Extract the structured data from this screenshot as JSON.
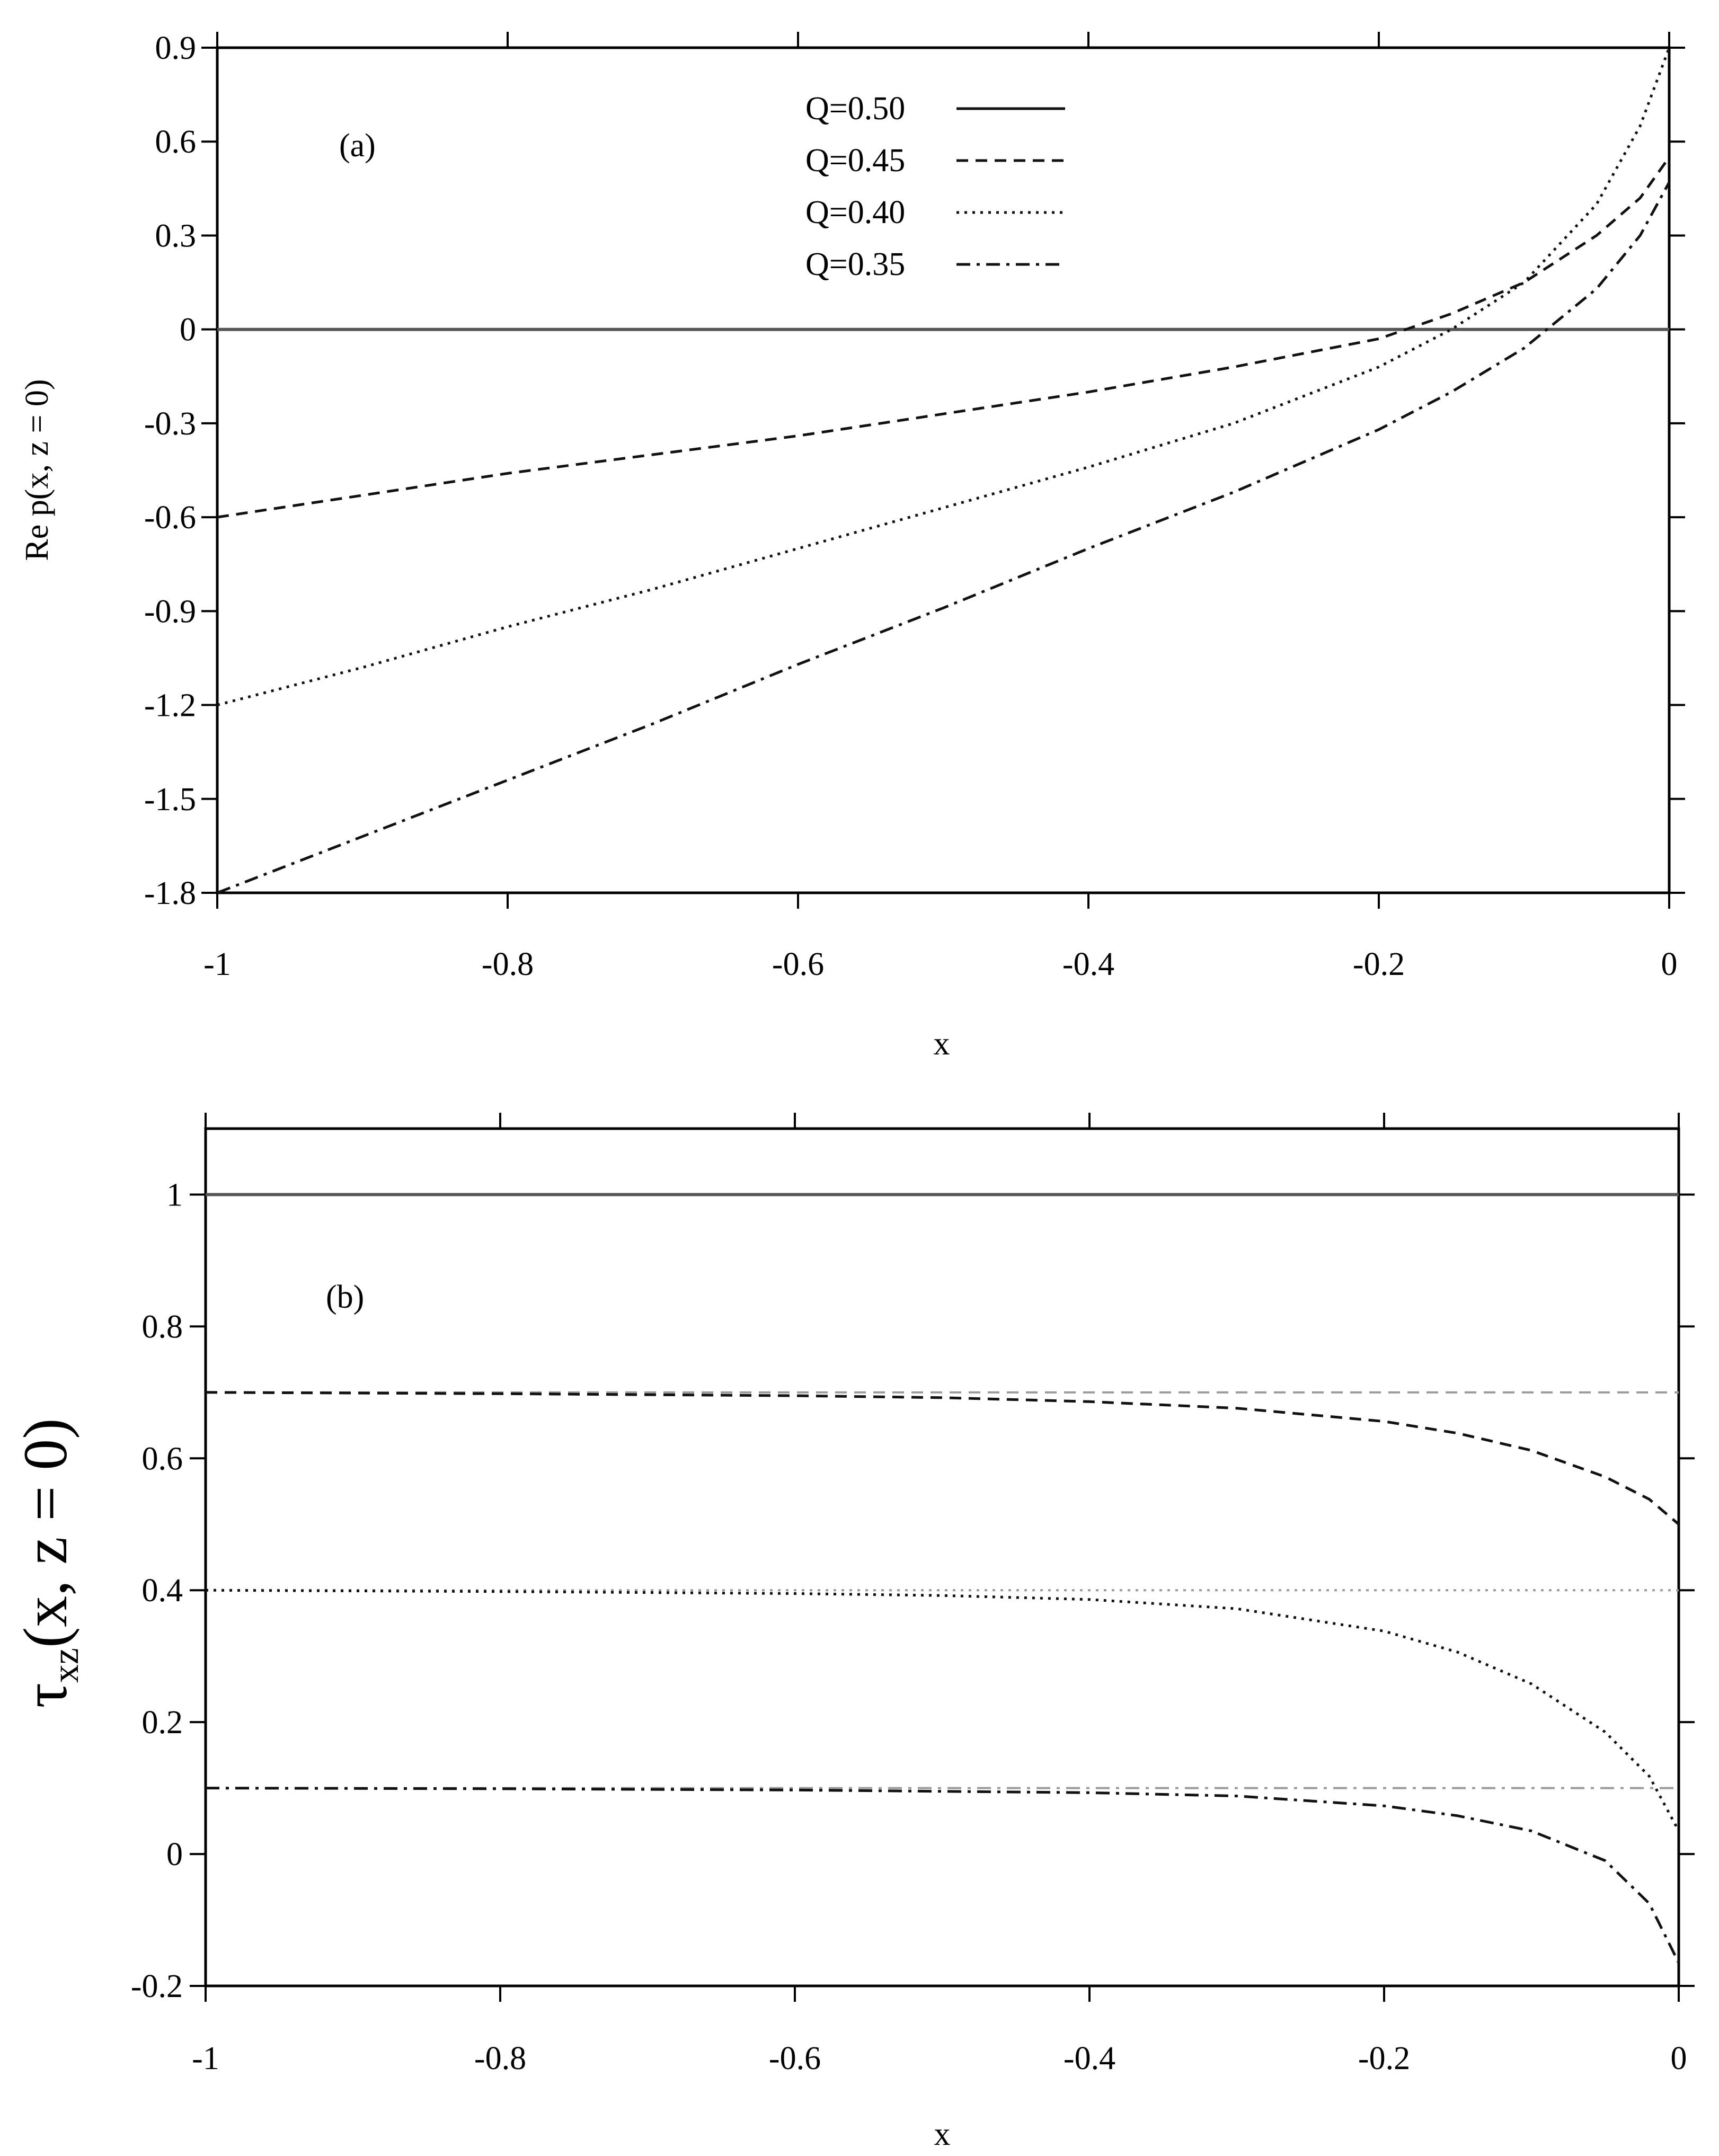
{
  "chart_data": [
    {
      "type": "line",
      "panel_label": "(a)",
      "xlabel": "x",
      "ylabel": "Re p(x, z = 0)",
      "xlim": [
        -1,
        0
      ],
      "ylim": [
        -1.8,
        0.9
      ],
      "x_ticks": [
        -1,
        -0.8,
        -0.6,
        -0.4,
        -0.2,
        0
      ],
      "x_tick_labels": [
        "-1",
        "-0.8",
        "-0.6",
        "-0.4",
        "-0.2",
        "0"
      ],
      "y_ticks": [
        -1.8,
        -1.5,
        -1.2,
        -0.9,
        -0.6,
        -0.3,
        0,
        0.3,
        0.6,
        0.9
      ],
      "y_tick_labels": [
        "-1.8",
        "-1.5",
        "-1.2",
        "-0.9",
        "-0.6",
        "-0.3",
        "0",
        "0.3",
        "0.6",
        "0.9"
      ],
      "grid": false,
      "legend_position": "top-center",
      "x": [
        -1,
        -0.9,
        -0.8,
        -0.7,
        -0.6,
        -0.5,
        -0.4,
        -0.3,
        -0.2,
        -0.15,
        -0.1,
        -0.05,
        -0.02,
        0
      ],
      "series": [
        {
          "name": "Q=0.50",
          "style": "solid",
          "values": [
            0,
            0,
            0,
            0,
            0,
            0,
            0,
            0,
            0,
            0,
            0,
            0,
            0,
            0
          ]
        },
        {
          "name": "Q=0.45",
          "style": "dashed",
          "values": [
            -0.6,
            -0.53,
            -0.46,
            -0.4,
            -0.34,
            -0.27,
            -0.2,
            -0.12,
            -0.03,
            0.05,
            0.15,
            0.3,
            0.42,
            0.55
          ]
        },
        {
          "name": "Q=0.40",
          "style": "dotted",
          "values": [
            -1.2,
            -1.08,
            -0.95,
            -0.83,
            -0.7,
            -0.57,
            -0.44,
            -0.3,
            -0.12,
            0.0,
            0.15,
            0.4,
            0.65,
            0.9
          ]
        },
        {
          "name": "Q=0.35",
          "style": "dashdot",
          "values": [
            -1.8,
            -1.62,
            -1.44,
            -1.26,
            -1.07,
            -0.89,
            -0.7,
            -0.52,
            -0.32,
            -0.2,
            -0.06,
            0.13,
            0.3,
            0.47
          ]
        }
      ]
    },
    {
      "type": "line",
      "panel_label": "(b)",
      "xlabel": "x",
      "ylabel": "τ",
      "ylabel_subscript": "xz",
      "ylabel_suffix": "(x, z = 0)",
      "xlim": [
        -1,
        0
      ],
      "ylim": [
        -0.2,
        1.1
      ],
      "x_ticks": [
        -1,
        -0.8,
        -0.6,
        -0.4,
        -0.2,
        0
      ],
      "x_tick_labels": [
        "-1",
        "-0.8",
        "-0.6",
        "-0.4",
        "-0.2",
        "0"
      ],
      "y_ticks": [
        -0.2,
        0,
        0.2,
        0.4,
        0.6,
        0.8,
        1
      ],
      "y_tick_labels": [
        "-0.2",
        "0",
        "0.2",
        "0.4",
        "0.6",
        "0.8",
        "1"
      ],
      "grid": false,
      "x": [
        -1,
        -0.8,
        -0.6,
        -0.5,
        -0.4,
        -0.3,
        -0.2,
        -0.15,
        -0.1,
        -0.05,
        -0.02,
        0
      ],
      "series": [
        {
          "name": "Q=0.50",
          "style": "solid",
          "values": [
            1,
            1,
            1,
            1,
            1,
            1,
            1,
            1,
            1,
            1,
            1,
            1
          ]
        },
        {
          "name": "Q=0.45",
          "style": "dashed",
          "values": [
            0.7,
            0.698,
            0.695,
            0.692,
            0.686,
            0.676,
            0.656,
            0.638,
            0.612,
            0.572,
            0.538,
            0.5
          ]
        },
        {
          "name": "Q=0.40",
          "style": "dotted",
          "values": [
            0.4,
            0.398,
            0.395,
            0.392,
            0.386,
            0.372,
            0.338,
            0.306,
            0.258,
            0.185,
            0.118,
            0.035
          ]
        },
        {
          "name": "Q=0.35",
          "style": "dashdot",
          "values": [
            0.1,
            0.099,
            0.097,
            0.095,
            0.093,
            0.088,
            0.073,
            0.058,
            0.035,
            -0.01,
            -0.075,
            -0.165
          ]
        }
      ],
      "reference_lines": [
        {
          "y": 0.7,
          "style": "dashed"
        },
        {
          "y": 0.4,
          "style": "dotted"
        },
        {
          "y": 0.1,
          "style": "dashdot"
        }
      ]
    }
  ]
}
